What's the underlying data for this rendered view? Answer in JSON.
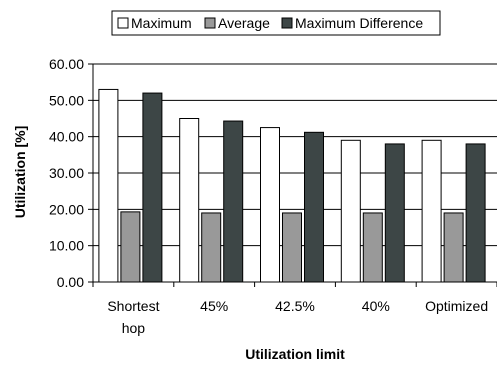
{
  "chart_data": {
    "type": "bar",
    "title": "",
    "xlabel": "Utilization limit",
    "ylabel": "Utilization [%]",
    "categories": [
      "Shortest hop",
      "45%",
      "42.5%",
      "40%",
      "Optimized"
    ],
    "ylim": [
      0,
      60
    ],
    "yticks": [
      "0.00",
      "10.00",
      "20.00",
      "30.00",
      "40.00",
      "50.00",
      "60.00"
    ],
    "grid": true,
    "legend_position": "top",
    "series": [
      {
        "name": "Maximum",
        "color": "#ffffff",
        "values": [
          53,
          45,
          42.5,
          39,
          39
        ]
      },
      {
        "name": "Average",
        "color": "#999999",
        "values": [
          19.3,
          19,
          19,
          19,
          19
        ]
      },
      {
        "name": "Maximum Difference",
        "color": "#3d4646",
        "values": [
          52,
          44.3,
          41.2,
          38,
          38
        ]
      }
    ]
  }
}
